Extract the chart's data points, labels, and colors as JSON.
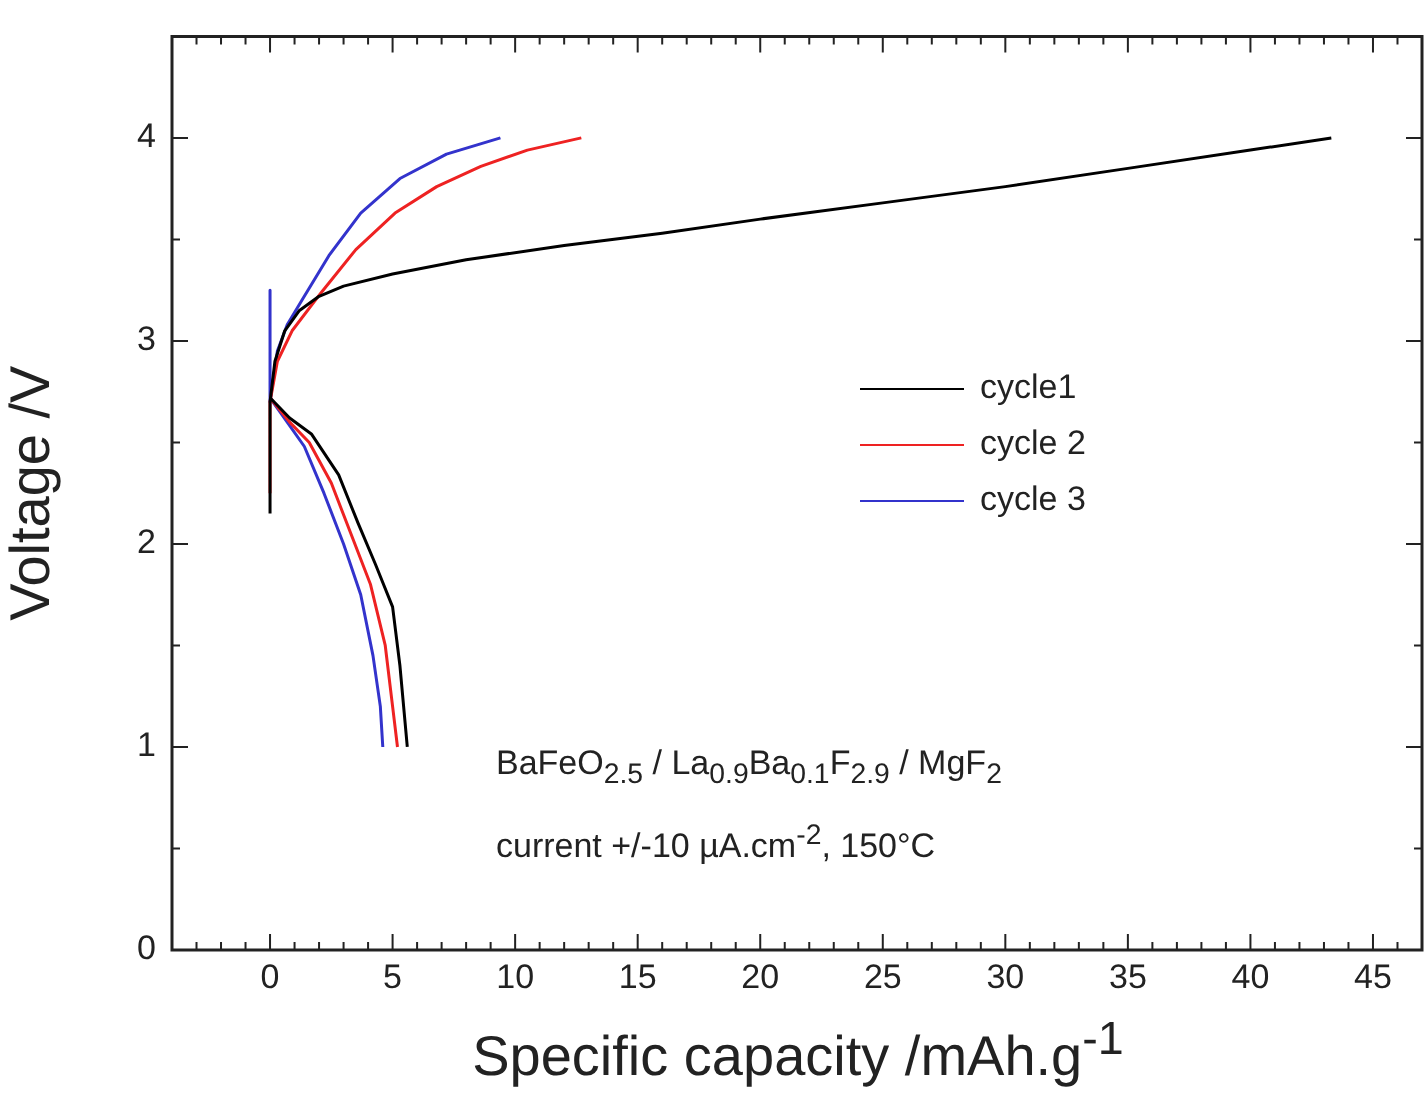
{
  "chart_data": {
    "type": "line",
    "xlabel": "Specific capacity /mAh.g$^{-1}$",
    "ylabel": "Voltage /V",
    "xlim": [
      -4,
      47
    ],
    "ylim": [
      0,
      4.5
    ],
    "xticks": [
      {
        "value": -3,
        "label": null
      },
      {
        "value": -2,
        "label": null
      },
      {
        "value": -1,
        "label": null
      },
      0,
      {
        "value": 1,
        "label": null
      },
      {
        "value": 2,
        "label": null
      },
      {
        "value": 3,
        "label": null
      },
      {
        "value": 4,
        "label": null
      },
      5,
      {
        "value": 6,
        "label": null
      },
      {
        "value": 7,
        "label": null
      },
      {
        "value": 8,
        "label": null
      },
      {
        "value": 9,
        "label": null
      },
      10,
      {
        "value": 11,
        "label": null
      },
      {
        "value": 12,
        "label": null
      },
      {
        "value": 13,
        "label": null
      },
      {
        "value": 14,
        "label": null
      },
      15,
      {
        "value": 16,
        "label": null
      },
      {
        "value": 17,
        "label": null
      },
      {
        "value": 18,
        "label": null
      },
      {
        "value": 19,
        "label": null
      },
      20,
      {
        "value": 21,
        "label": null
      },
      {
        "value": 22,
        "label": null
      },
      {
        "value": 23,
        "label": null
      },
      {
        "value": 24,
        "label": null
      },
      25,
      {
        "value": 26,
        "label": null
      },
      {
        "value": 27,
        "label": null
      },
      {
        "value": 28,
        "label": null
      },
      {
        "value": 29,
        "label": null
      },
      30,
      {
        "value": 31,
        "label": null
      },
      {
        "value": 32,
        "label": null
      },
      {
        "value": 33,
        "label": null
      },
      {
        "value": 34,
        "label": null
      },
      35,
      {
        "value": 36,
        "label": null
      },
      {
        "value": 37,
        "label": null
      },
      {
        "value": 38,
        "label": null
      },
      {
        "value": 39,
        "label": null
      },
      40,
      {
        "value": 41,
        "label": null
      },
      {
        "value": 42,
        "label": null
      },
      {
        "value": 43,
        "label": null
      },
      {
        "value": 44,
        "label": null
      },
      45,
      {
        "value": 46,
        "label": null
      }
    ],
    "yticks": [
      0,
      {
        "value": 0.5,
        "label": null
      },
      1,
      {
        "value": 1.5,
        "label": null
      },
      2,
      {
        "value": 2.5,
        "label": null
      },
      3,
      {
        "value": 3.5,
        "label": null
      },
      4
    ],
    "grid": false,
    "legend": "right",
    "marker": "none",
    "line_style": "solid",
    "series": [
      {
        "name": "cycle1",
        "color": "#000000",
        "x": [
          0,
          0,
          0.2,
          0.6,
          1.2,
          2,
          3,
          5,
          8,
          12,
          16,
          20,
          25,
          30,
          35,
          40,
          43.3,
          null,
          0,
          0.8,
          1.7,
          2.8,
          3.6,
          4.3,
          5,
          5.3,
          5.6
        ],
        "values": [
          2.15,
          2.7,
          2.9,
          3.05,
          3.15,
          3.22,
          3.27,
          3.33,
          3.4,
          3.47,
          3.53,
          3.6,
          3.68,
          3.76,
          3.85,
          3.94,
          4.0,
          null,
          2.72,
          2.62,
          2.54,
          2.34,
          2.1,
          1.9,
          1.69,
          1.4,
          1.0
        ]
      },
      {
        "name": "cycle 2",
        "color": "#ee2222",
        "x": [
          0,
          0,
          0.3,
          0.9,
          2.1,
          3.5,
          5.1,
          6.8,
          8.6,
          10.5,
          12.7,
          null,
          0,
          0.8,
          1.6,
          2.5,
          3.3,
          4.1,
          4.7,
          5,
          5.2
        ],
        "values": [
          2.25,
          2.7,
          2.9,
          3.05,
          3.24,
          3.45,
          3.63,
          3.76,
          3.86,
          3.94,
          4.0,
          null,
          2.72,
          2.6,
          2.5,
          2.3,
          2.05,
          1.8,
          1.5,
          1.2,
          1.0
        ]
      },
      {
        "name": "cycle 3",
        "color": "#3333cc",
        "x": [
          0,
          0,
          0.3,
          0.7,
          1.3,
          2.4,
          3.7,
          5.3,
          7.2,
          9.4,
          null,
          0,
          0.7,
          1.4,
          2.2,
          3,
          3.7,
          4.2,
          4.5,
          4.6
        ],
        "values": [
          3.25,
          2.7,
          2.95,
          3.08,
          3.2,
          3.42,
          3.63,
          3.8,
          3.92,
          4.0,
          null,
          2.72,
          2.6,
          2.48,
          2.25,
          2.0,
          1.75,
          1.45,
          1.2,
          1.0
        ]
      }
    ],
    "annotations": [
      "BaFeO$_{2.5}$ / La$_{0.9}$Ba$_{0.1}$F$_{2.9}$ / MgF$_{2}$",
      "current +/-10 µA.cm$^{-2}$, 150°C"
    ]
  }
}
